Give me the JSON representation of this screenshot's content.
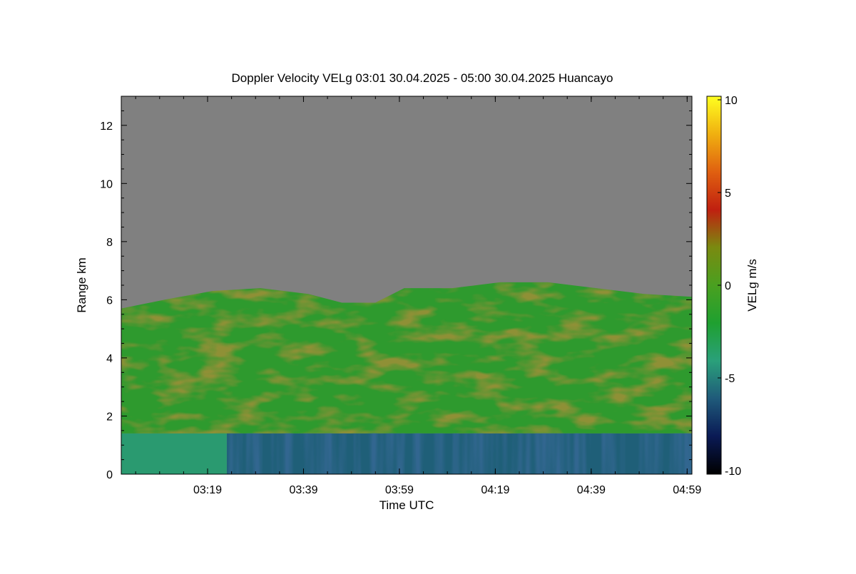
{
  "chart_data": {
    "type": "heatmap",
    "title": "Doppler Velocity VELg   03:01 30.04.2025 - 05:00 30.04.2025 Huancayo",
    "xlabel": "Time UTC",
    "ylabel": "Range km",
    "x_tick_labels": [
      "03:19",
      "03:39",
      "03:59",
      "04:19",
      "04:39",
      "04:59"
    ],
    "xlim": [
      "03:01",
      "05:00"
    ],
    "y_ticks": [
      0,
      2,
      4,
      6,
      8,
      10,
      12
    ],
    "ylim": [
      0,
      13
    ],
    "colorbar": {
      "label": "VELg m/s",
      "ticks": [
        10,
        5,
        0,
        -5,
        -10
      ],
      "range": [
        -10,
        10
      ],
      "colors": [
        "#000000",
        "#0a1a55",
        "#1f5a7a",
        "#2aa07a",
        "#1fa030",
        "#4aa020",
        "#7a8a10",
        "#c02010",
        "#e06010",
        "#f0b010",
        "#ffff20"
      ]
    },
    "background_color": "#808080",
    "cloud_top_profile_km": [
      {
        "time": "03:01",
        "top": 5.7
      },
      {
        "time": "03:10",
        "top": 6.0
      },
      {
        "time": "03:20",
        "top": 6.3
      },
      {
        "time": "03:30",
        "top": 6.4
      },
      {
        "time": "03:40",
        "top": 6.2
      },
      {
        "time": "03:47",
        "top": 5.9
      },
      {
        "time": "03:54",
        "top": 5.9
      },
      {
        "time": "04:00",
        "top": 6.4
      },
      {
        "time": "04:10",
        "top": 6.4
      },
      {
        "time": "04:20",
        "top": 6.6
      },
      {
        "time": "04:30",
        "top": 6.6
      },
      {
        "time": "04:40",
        "top": 6.4
      },
      {
        "time": "04:50",
        "top": 6.2
      },
      {
        "time": "05:00",
        "top": 6.1
      }
    ],
    "layers": [
      {
        "name": "ice_cloud",
        "from_km": 1.4,
        "to_km_profile": "cloud_top",
        "velocity_mps": -1.5,
        "color": "#2e9a2e"
      },
      {
        "name": "rain_layer",
        "time_from": "03:23",
        "time_to": "05:00",
        "from_km": 0,
        "to_km": 1.4,
        "velocity_mps": -6,
        "color": "#1f5f78"
      },
      {
        "name": "early_low_layer",
        "time_from": "03:01",
        "time_to": "03:23",
        "from_km": 0,
        "to_km": 1.4,
        "velocity_mps": -3,
        "color": "#2a9a70"
      }
    ]
  }
}
